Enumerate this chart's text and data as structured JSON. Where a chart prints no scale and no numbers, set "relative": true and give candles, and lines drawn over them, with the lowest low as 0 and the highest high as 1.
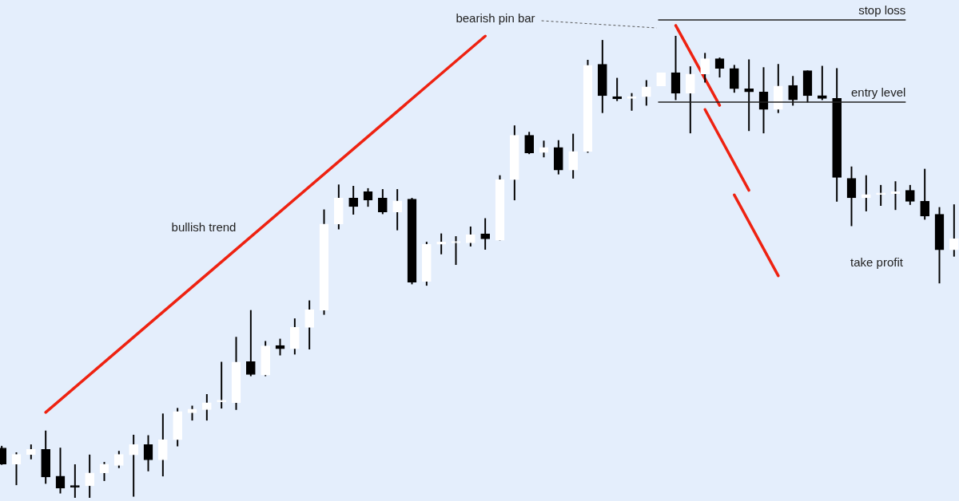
{
  "chart_data": {
    "type": "candlestick",
    "relative": true,
    "legend": false,
    "grid": false,
    "categories": [
      null,
      null,
      null,
      null,
      null,
      null,
      null,
      null,
      null,
      null,
      null,
      null,
      null,
      null,
      null,
      null,
      null,
      null,
      null,
      null,
      null,
      null,
      null,
      null,
      null,
      null,
      null,
      null,
      null,
      null,
      null,
      null,
      null,
      null,
      null,
      null,
      null,
      null,
      null,
      null,
      null,
      null,
      null,
      null,
      null,
      null,
      null,
      null,
      null,
      null,
      null,
      null,
      null,
      null,
      null,
      null,
      null,
      null,
      null,
      null,
      null,
      null,
      null,
      null,
      null,
      null
    ],
    "ohlc": [
      [
        0.108,
        0.112,
        0.072,
        0.073
      ],
      [
        0.073,
        0.098,
        0.028,
        0.094
      ],
      [
        0.094,
        0.115,
        0.084,
        0.105
      ],
      [
        0.105,
        0.145,
        0.031,
        0.045
      ],
      [
        0.047,
        0.108,
        0.01,
        0.021
      ],
      [
        0.026,
        0.072,
        0,
        0.023
      ],
      [
        0.026,
        0.093,
        0,
        0.054
      ],
      [
        0.054,
        0.077,
        0.037,
        0.073
      ],
      [
        0.07,
        0.101,
        0.065,
        0.094
      ],
      [
        0.093,
        0.136,
        0.003,
        0.115
      ],
      [
        0.115,
        0.135,
        0.058,
        0.082
      ],
      [
        0.082,
        0.182,
        0.047,
        0.126
      ],
      [
        0.126,
        0.194,
        0.112,
        0.187
      ],
      [
        0.184,
        0.199,
        0.168,
        0.192
      ],
      [
        0.191,
        0.224,
        0.168,
        0.206
      ],
      [
        0.208,
        0.294,
        0.194,
        0.21
      ],
      [
        0.206,
        0.348,
        0.191,
        0.294
      ],
      [
        0.295,
        0.406,
        0.264,
        0.267
      ],
      [
        0.266,
        0.339,
        0.264,
        0.329
      ],
      [
        0.33,
        0.344,
        0.309,
        0.323
      ],
      [
        0.323,
        0.388,
        0.311,
        0.369
      ],
      [
        0.369,
        0.427,
        0.322,
        0.407
      ],
      [
        0.406,
        0.624,
        0.397,
        0.593
      ],
      [
        0.593,
        0.678,
        0.582,
        0.649
      ],
      [
        0.649,
        0.675,
        0.614,
        0.631
      ],
      [
        0.663,
        0.67,
        0.631,
        0.645
      ],
      [
        0.649,
        0.668,
        0.615,
        0.619
      ],
      [
        0.619,
        0.668,
        0.58,
        0.643
      ],
      [
        0.647,
        0.649,
        0.463,
        0.467
      ],
      [
        0.469,
        0.554,
        0.46,
        0.549
      ],
      [
        0.549,
        0.572,
        0.528,
        0.554
      ],
      [
        0.552,
        0.566,
        0.505,
        0.552
      ],
      [
        0.552,
        0.587,
        0.545,
        0.57
      ],
      [
        0.572,
        0.605,
        0.538,
        0.561
      ],
      [
        0.558,
        0.698,
        0.558,
        0.689
      ],
      [
        0.689,
        0.806,
        0.645,
        0.785
      ],
      [
        0.785,
        0.792,
        0.745,
        0.747
      ],
      [
        0.748,
        0.773,
        0.738,
        0.759
      ],
      [
        0.759,
        0.774,
        0.701,
        0.71
      ],
      [
        0.71,
        0.788,
        0.692,
        0.75
      ],
      [
        0.75,
        0.948,
        0.748,
        0.937
      ],
      [
        0.939,
        0.991,
        0.834,
        0.871
      ],
      [
        0.869,
        0.909,
        0.86,
        0.864
      ],
      [
        0.865,
        0.876,
        0.839,
        0.869
      ],
      [
        0.869,
        0.904,
        0.85,
        0.89
      ],
      [
        0.892,
        0.921,
        0.892,
        0.921
      ],
      [
        0.921,
        1,
        0.862,
        0.876
      ],
      [
        0.876,
        0.934,
        0.79,
        0.918
      ],
      [
        0.918,
        0.963,
        0.9,
        0.951
      ],
      [
        0.951,
        0.953,
        0.911,
        0.93
      ],
      [
        0.93,
        0.937,
        0.878,
        0.886
      ],
      [
        0.886,
        0.949,
        0.795,
        0.879
      ],
      [
        0.879,
        0.932,
        0.79,
        0.841
      ],
      [
        0.841,
        0.939,
        0.834,
        0.892
      ],
      [
        0.893,
        0.913,
        0.85,
        0.862
      ],
      [
        0.925,
        0.925,
        0.857,
        0.871
      ],
      [
        0.871,
        0.935,
        0.862,
        0.865
      ],
      [
        0.865,
        0.93,
        0.642,
        0.694
      ],
      [
        0.692,
        0.717,
        0.589,
        0.65
      ],
      [
        0.65,
        0.698,
        0.621,
        0.657
      ],
      [
        0.657,
        0.677,
        0.633,
        0.657
      ],
      [
        0.659,
        0.685,
        0.624,
        0.663
      ],
      [
        0.666,
        0.677,
        0.635,
        0.642
      ],
      [
        0.642,
        0.712,
        0.603,
        0.61
      ],
      [
        0.614,
        0.629,
        0.465,
        0.537
      ],
      [
        0.537,
        0.635,
        0.523,
        0.561
      ]
    ],
    "colors": [
      "#000000",
      "#ffffff",
      "#ffffff",
      "#000000",
      "#000000",
      "#000000",
      "#ffffff",
      "#ffffff",
      "#ffffff",
      "#ffffff",
      "#000000",
      "#ffffff",
      "#ffffff",
      "#ffffff",
      "#ffffff",
      "#ffffff",
      "#ffffff",
      "#000000",
      "#ffffff",
      "#000000",
      "#ffffff",
      "#ffffff",
      "#ffffff",
      "#ffffff",
      "#000000",
      "#000000",
      "#000000",
      "#ffffff",
      "#000000",
      "#ffffff",
      "#ffffff",
      "#ffffff",
      "#ffffff",
      "#000000",
      "#ffffff",
      "#ffffff",
      "#000000",
      "#ffffff",
      "#000000",
      "#ffffff",
      "#ffffff",
      "#000000",
      "#000000",
      "#ffffff",
      "#ffffff",
      "#ffffff",
      "#000000",
      "#ffffff",
      "#ffffff",
      "#000000",
      "#000000",
      "#000000",
      "#000000",
      "#ffffff",
      "#000000",
      "#000000",
      "#000000",
      "#000000",
      "#000000",
      "#ffffff",
      "#ffffff",
      "#ffffff",
      "#000000",
      "#000000",
      "#000000",
      "#ffffff"
    ],
    "series": [
      {
        "type": "line",
        "color": "#ee2211",
        "values": [
          null,
          null,
          null,
          0.185,
          null,
          null,
          null,
          null,
          null,
          null,
          null,
          null,
          null,
          null,
          null,
          null,
          null,
          null,
          null,
          null,
          null,
          null,
          null,
          null,
          null,
          null,
          null,
          null,
          null,
          null,
          null,
          null,
          null,
          1,
          null,
          null,
          null,
          null,
          null,
          null,
          null,
          null,
          null,
          null,
          null,
          null,
          null,
          null,
          null,
          null,
          null,
          null,
          null,
          null,
          null,
          null,
          null,
          null,
          null,
          null,
          null,
          null,
          null,
          null,
          null,
          null
        ]
      },
      {
        "type": "line",
        "color": "#ee2211",
        "values": [
          null,
          null,
          null,
          null,
          null,
          null,
          null,
          null,
          null,
          null,
          null,
          null,
          null,
          null,
          null,
          null,
          null,
          null,
          null,
          null,
          null,
          null,
          null,
          null,
          null,
          null,
          null,
          null,
          null,
          null,
          null,
          null,
          null,
          null,
          null,
          null,
          null,
          null,
          null,
          null,
          null,
          null,
          null,
          null,
          null,
          null,
          1.023,
          null,
          null,
          0.85,
          null,
          null,
          null,
          null,
          null,
          null,
          null,
          null,
          null,
          null,
          null,
          null,
          null,
          null,
          null,
          null
        ]
      },
      {
        "type": "line",
        "color": "#ee2211",
        "values": [
          null,
          null,
          null,
          null,
          null,
          null,
          null,
          null,
          null,
          null,
          null,
          null,
          null,
          null,
          null,
          null,
          null,
          null,
          null,
          null,
          null,
          null,
          null,
          null,
          null,
          null,
          null,
          null,
          null,
          null,
          null,
          null,
          null,
          null,
          null,
          null,
          null,
          null,
          null,
          null,
          null,
          null,
          null,
          null,
          null,
          null,
          null,
          null,
          0.841,
          null,
          null,
          0.666,
          null,
          null,
          null,
          null,
          null,
          null,
          null,
          null,
          null,
          null,
          null,
          null,
          null,
          null
        ]
      },
      {
        "type": "line",
        "color": "#ee2211",
        "values": [
          null,
          null,
          null,
          null,
          null,
          null,
          null,
          null,
          null,
          null,
          null,
          null,
          null,
          null,
          null,
          null,
          null,
          null,
          null,
          null,
          null,
          null,
          null,
          null,
          null,
          null,
          null,
          null,
          null,
          null,
          null,
          null,
          null,
          null,
          null,
          null,
          null,
          null,
          null,
          null,
          null,
          null,
          null,
          null,
          null,
          null,
          null,
          null,
          null,
          null,
          0.656,
          null,
          null,
          0.481,
          null,
          null,
          null,
          null,
          null,
          null,
          null,
          null,
          null,
          null,
          null,
          null
        ]
      }
    ],
    "ref_lines": [
      {
        "axis": "y",
        "value": 1.035,
        "label": "stop loss",
        "color": "#222222"
      },
      {
        "axis": "y",
        "value": 0.857,
        "label": "entry level",
        "color": "#222222"
      }
    ],
    "annotations": [
      "bullish trend",
      "bearish pin bar",
      "take profit"
    ]
  }
}
